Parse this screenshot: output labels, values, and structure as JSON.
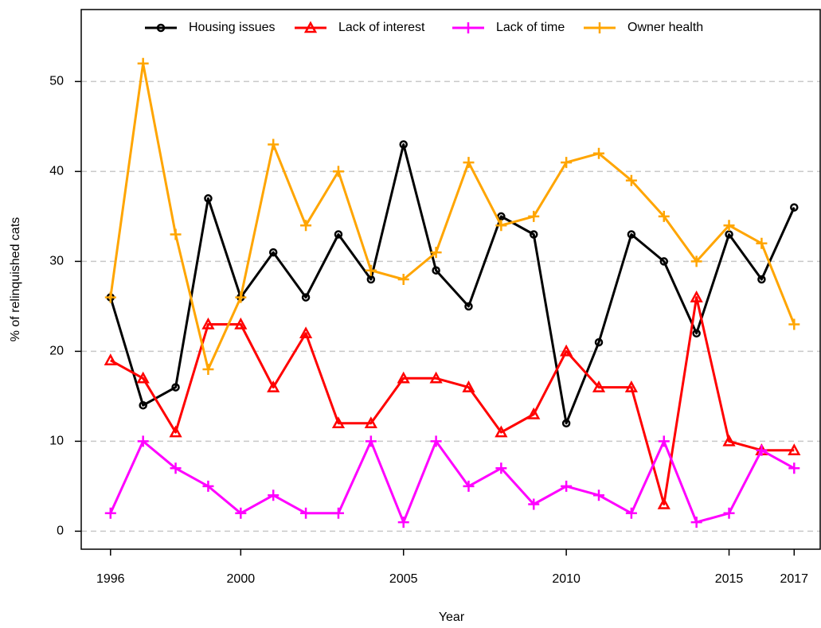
{
  "chart_data": {
    "type": "line",
    "x_label": "Year",
    "y_label": "% of relinquished cats",
    "x": [
      1996,
      1997,
      1998,
      1999,
      2000,
      2001,
      2002,
      2003,
      2004,
      2005,
      2006,
      2007,
      2008,
      2009,
      2010,
      2011,
      2012,
      2013,
      2014,
      2015,
      2016,
      2017
    ],
    "series": [
      {
        "name": "Housing issues",
        "color": "#000000",
        "marker": "circle",
        "values": [
          26,
          14,
          16,
          37,
          26,
          31,
          26,
          33,
          28,
          43,
          29,
          25,
          35,
          33,
          12,
          21,
          33,
          30,
          22,
          33,
          28,
          36
        ]
      },
      {
        "name": "Lack of interest",
        "color": "#ff0000",
        "marker": "triangle",
        "values": [
          19,
          17,
          11,
          23,
          23,
          16,
          22,
          12,
          12,
          17,
          17,
          16,
          11,
          13,
          20,
          16,
          16,
          3,
          26,
          10,
          9,
          9
        ]
      },
      {
        "name": "Lack of time",
        "color": "#ff00ff",
        "marker": "plus",
        "values": [
          2,
          10,
          7,
          5,
          2,
          4,
          2,
          2,
          10,
          1,
          10,
          5,
          7,
          3,
          5,
          4,
          2,
          10,
          1,
          2,
          9,
          7
        ]
      },
      {
        "name": "Owner health",
        "color": "#ffa500",
        "marker": "plus",
        "values": [
          26,
          52,
          33,
          18,
          26,
          43,
          34,
          40,
          29,
          28,
          31,
          41,
          34,
          35,
          41,
          42,
          39,
          35,
          30,
          34,
          32,
          23
        ]
      }
    ],
    "xlim": [
      1995.1,
      2017.8
    ],
    "ylim": [
      -2,
      58
    ],
    "xticks": [
      1996,
      2000,
      2005,
      2010,
      2015,
      2017
    ],
    "yticks": [
      0,
      10,
      20,
      30,
      40,
      50
    ],
    "grid": true,
    "legend": "top"
  }
}
